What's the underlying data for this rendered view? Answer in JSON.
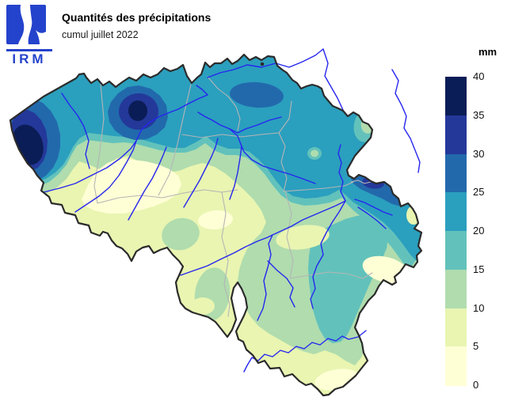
{
  "header": {
    "title": "Quantités des précipitations",
    "subtitle": "cumul juillet 2022",
    "logo_text": "IRM",
    "logo_color": "#2443cc"
  },
  "legend": {
    "unit": "mm",
    "tick_labels": [
      "40",
      "35",
      "30",
      "25",
      "20",
      "15",
      "10",
      "5",
      "0"
    ],
    "band_colors_top_to_bottom": [
      "#0b1d56",
      "#24389a",
      "#2269ac",
      "#2b9fbe",
      "#62c2bb",
      "#b0dcae",
      "#e9f5b1",
      "#ffffd6"
    ],
    "band_ranges_mm_top_to_bottom": [
      "35-40",
      "30-35",
      "25-30",
      "20-25",
      "15-20",
      "10-15",
      "5-10",
      "0-5"
    ]
  },
  "map": {
    "region_shown": "belgium",
    "river_color": "#2626ee",
    "province_border_color": "#b5b5b5",
    "country_border_color": "#2b2b2b",
    "background": "#ffffff",
    "features": [
      "precipitation-contours",
      "rivers",
      "province-borders",
      "country-border"
    ]
  }
}
